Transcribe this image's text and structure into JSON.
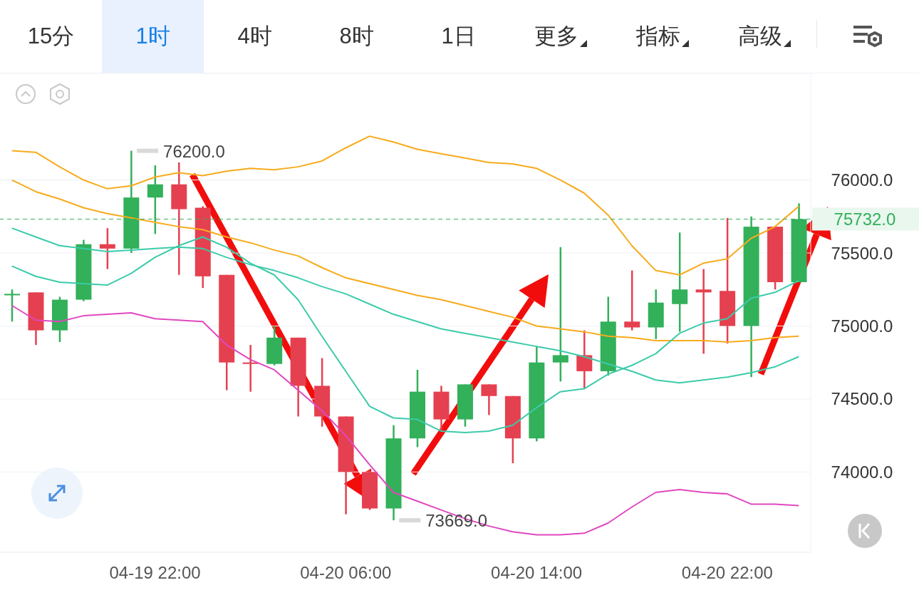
{
  "chart_data": {
    "type": "candlestick",
    "annotations": [
      "15分",
      "1时",
      "4时",
      "8时",
      "1日",
      "更多",
      "指标",
      "高级",
      "76200.0",
      "73669.0"
    ],
    "categories": [
      null,
      null,
      null,
      null,
      null,
      null,
      "04-19 22:00",
      null,
      null,
      null,
      null,
      null,
      null,
      null,
      "04-20 06:00",
      null,
      null,
      null,
      null,
      null,
      null,
      null,
      "04-20 14:00",
      null,
      null,
      null,
      null,
      null,
      null,
      null,
      "04-20 22:00",
      null,
      null,
      null
    ],
    "ohlc": [
      [
        75210,
        75250,
        75030,
        75220
      ],
      [
        75230,
        75230,
        74870,
        74970
      ],
      [
        74970,
        75200,
        74890,
        75180
      ],
      [
        75180,
        75590,
        75170,
        75560
      ],
      [
        75560,
        75670,
        75390,
        75530
      ],
      [
        75530,
        76200,
        75500,
        75880
      ],
      [
        75880,
        76100,
        75630,
        75970
      ],
      [
        75970,
        76120,
        75350,
        75800
      ],
      [
        75810,
        75820,
        75260,
        75340
      ],
      [
        75350,
        75350,
        74560,
        74750
      ],
      [
        74750,
        74870,
        74550,
        74740
      ],
      [
        74740,
        75000,
        74730,
        74920
      ],
      [
        74920,
        74920,
        74380,
        74590
      ],
      [
        74590,
        74780,
        74310,
        74380
      ],
      [
        74380,
        74380,
        73710,
        74000
      ],
      [
        74000,
        74010,
        73740,
        73750
      ],
      [
        73750,
        74320,
        73669,
        74230
      ],
      [
        74230,
        74700,
        74170,
        74550
      ],
      [
        74550,
        74590,
        74280,
        74360
      ],
      [
        74360,
        74600,
        74310,
        74600
      ],
      [
        74600,
        74600,
        74390,
        74520
      ],
      [
        74520,
        74520,
        74060,
        74230
      ],
      [
        74230,
        74860,
        74210,
        74750
      ],
      [
        74750,
        75540,
        74620,
        74800
      ],
      [
        74800,
        74970,
        74570,
        74690
      ],
      [
        74690,
        75200,
        74660,
        75030
      ],
      [
        75030,
        75380,
        74970,
        74990
      ],
      [
        74990,
        75250,
        74910,
        75160
      ],
      [
        75150,
        75640,
        74960,
        75250
      ],
      [
        75250,
        75390,
        74810,
        75230
      ],
      [
        75240,
        75740,
        74880,
        75000
      ],
      [
        75000,
        75750,
        74650,
        75680
      ],
      [
        75680,
        75680,
        75250,
        75300
      ],
      [
        75300,
        75840,
        75300,
        75732
      ]
    ],
    "colors": [
      "#32b05a",
      "#e5404f",
      "#32b05a",
      "#32b05a",
      "#e5404f",
      "#32b05a",
      "#32b05a",
      "#e5404f",
      "#e5404f",
      "#e5404f",
      "#e5404f",
      "#32b05a",
      "#e5404f",
      "#e5404f",
      "#e5404f",
      "#e5404f",
      "#32b05a",
      "#32b05a",
      "#e5404f",
      "#32b05a",
      "#e5404f",
      "#e5404f",
      "#32b05a",
      "#32b05a",
      "#e5404f",
      "#32b05a",
      "#e5404f",
      "#32b05a",
      "#32b05a",
      "#e5404f",
      "#e5404f",
      "#32b05a",
      "#e5404f",
      "#32b05a"
    ],
    "series": [
      {
        "type": "line",
        "color": "#f7ab1c",
        "values": [
          76200,
          76190,
          76090,
          76000,
          75940,
          75960,
          76020,
          76050,
          76030,
          76060,
          76080,
          76070,
          76090,
          76130,
          76220,
          76300,
          76260,
          76210,
          76180,
          76150,
          76120,
          76110,
          76080,
          76000,
          75910,
          75760,
          75550,
          75380,
          75350,
          75430,
          75460,
          75600,
          75680,
          75820
        ]
      },
      {
        "type": "line",
        "color": "#f7ab1c",
        "values": [
          76000,
          75920,
          75870,
          75810,
          75770,
          75740,
          75710,
          75680,
          75660,
          75610,
          75570,
          75520,
          75480,
          75400,
          75330,
          75290,
          75250,
          75210,
          75180,
          75140,
          75100,
          75060,
          75000,
          74980,
          74960,
          74930,
          74920,
          74900,
          74900,
          74900,
          74890,
          74900,
          74920,
          74930
        ]
      },
      {
        "type": "line",
        "color": "#3ccbaa",
        "values": [
          75670,
          75610,
          75550,
          75530,
          75510,
          75520,
          75530,
          75540,
          75530,
          75470,
          75420,
          75380,
          75330,
          75270,
          75220,
          75150,
          75080,
          75030,
          74980,
          74950,
          74920,
          74890,
          74860,
          74830,
          74790,
          74740,
          74690,
          74630,
          74610,
          74630,
          74650,
          74680,
          74720,
          74790
        ]
      },
      {
        "type": "line",
        "color": "#3ccbaa",
        "values": [
          75410,
          75340,
          75300,
          75290,
          75280,
          75360,
          75470,
          75550,
          75610,
          75540,
          75430,
          75350,
          75180,
          74930,
          74690,
          74450,
          74370,
          74360,
          74280,
          74270,
          74280,
          74320,
          74440,
          74550,
          74570,
          74670,
          74730,
          74810,
          74950,
          75020,
          75050,
          75190,
          75230,
          75310
        ]
      },
      {
        "type": "line",
        "color": "#e048c0",
        "values": [
          75140,
          75040,
          75030,
          75070,
          75080,
          75090,
          75050,
          75040,
          75030,
          74870,
          74770,
          74700,
          74560,
          74420,
          74250,
          74050,
          73860,
          73800,
          73740,
          73680,
          73630,
          73590,
          73570,
          73570,
          73580,
          73650,
          73760,
          73860,
          73880,
          73860,
          73850,
          73780,
          73780,
          73770
        ]
      }
    ],
    "ylim": [
      73450,
      76730
    ],
    "yticks": [
      {
        "value": 74000,
        "label": "74000.0"
      },
      {
        "value": 74500,
        "label": "74500.0"
      },
      {
        "value": 75000,
        "label": "75000.0"
      },
      {
        "value": 75500,
        "label": "75500.0"
      },
      {
        "value": 76000,
        "label": "76000.0"
      }
    ],
    "ref_lines": [
      {
        "axis": "y",
        "value": 75732,
        "label": "75732.0",
        "color": "#32b05a",
        "line_style": "dashed"
      }
    ],
    "grid": "y"
  }
}
